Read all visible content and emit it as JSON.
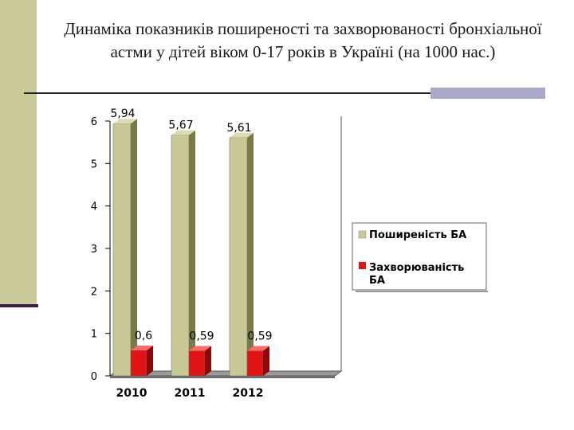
{
  "title": "Динаміка показників поширеності та захворюваності бронхіальної астми у дітей віком 0-17 років в Україні (на 1000 нас.)",
  "colors": {
    "band": "#c9c99a",
    "rule": "#3b1a4a",
    "accent": "#a8a8c8",
    "series1": "#c8c896",
    "series2": "#e01414"
  },
  "chart_data": {
    "type": "bar",
    "categories": [
      "2010",
      "2011",
      "2012"
    ],
    "series": [
      {
        "name": "Поширеність БА",
        "values": [
          5.94,
          5.67,
          5.61
        ],
        "labels": [
          "5,94",
          "5,67",
          "5,61"
        ]
      },
      {
        "name": "Захворюваність БА",
        "values": [
          0.6,
          0.59,
          0.59
        ],
        "labels": [
          "0,6",
          "0,59",
          "0,59"
        ]
      }
    ],
    "yticks": [
      "0",
      "1",
      "2",
      "3",
      "4",
      "5",
      "6"
    ],
    "ylim": [
      0,
      6
    ],
    "legend_position": "right",
    "style": "3d"
  }
}
